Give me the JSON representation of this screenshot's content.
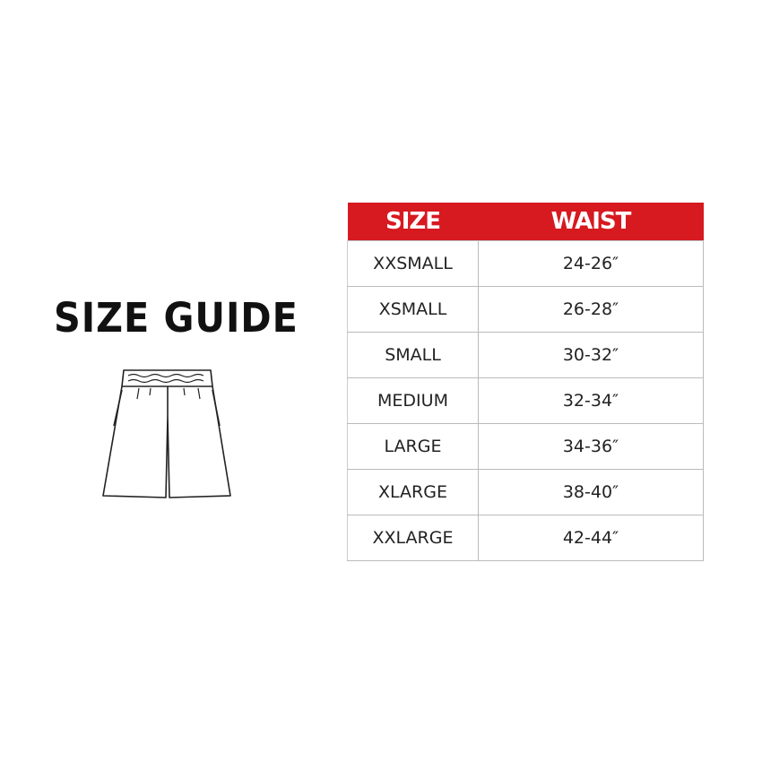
{
  "title": "SIZE GUIDE",
  "colors": {
    "accent": "#d71920"
  },
  "illustration": "shorts-icon",
  "table": {
    "headers": [
      "SIZE",
      "WAIST"
    ],
    "rows": [
      [
        "XXSMALL",
        "24-26″"
      ],
      [
        "XSMALL",
        "26-28″"
      ],
      [
        "SMALL",
        "30-32″"
      ],
      [
        "MEDIUM",
        "32-34″"
      ],
      [
        "LARGE",
        "34-36″"
      ],
      [
        "XLARGE",
        "38-40″"
      ],
      [
        "XXLARGE",
        "42-44″"
      ]
    ]
  }
}
